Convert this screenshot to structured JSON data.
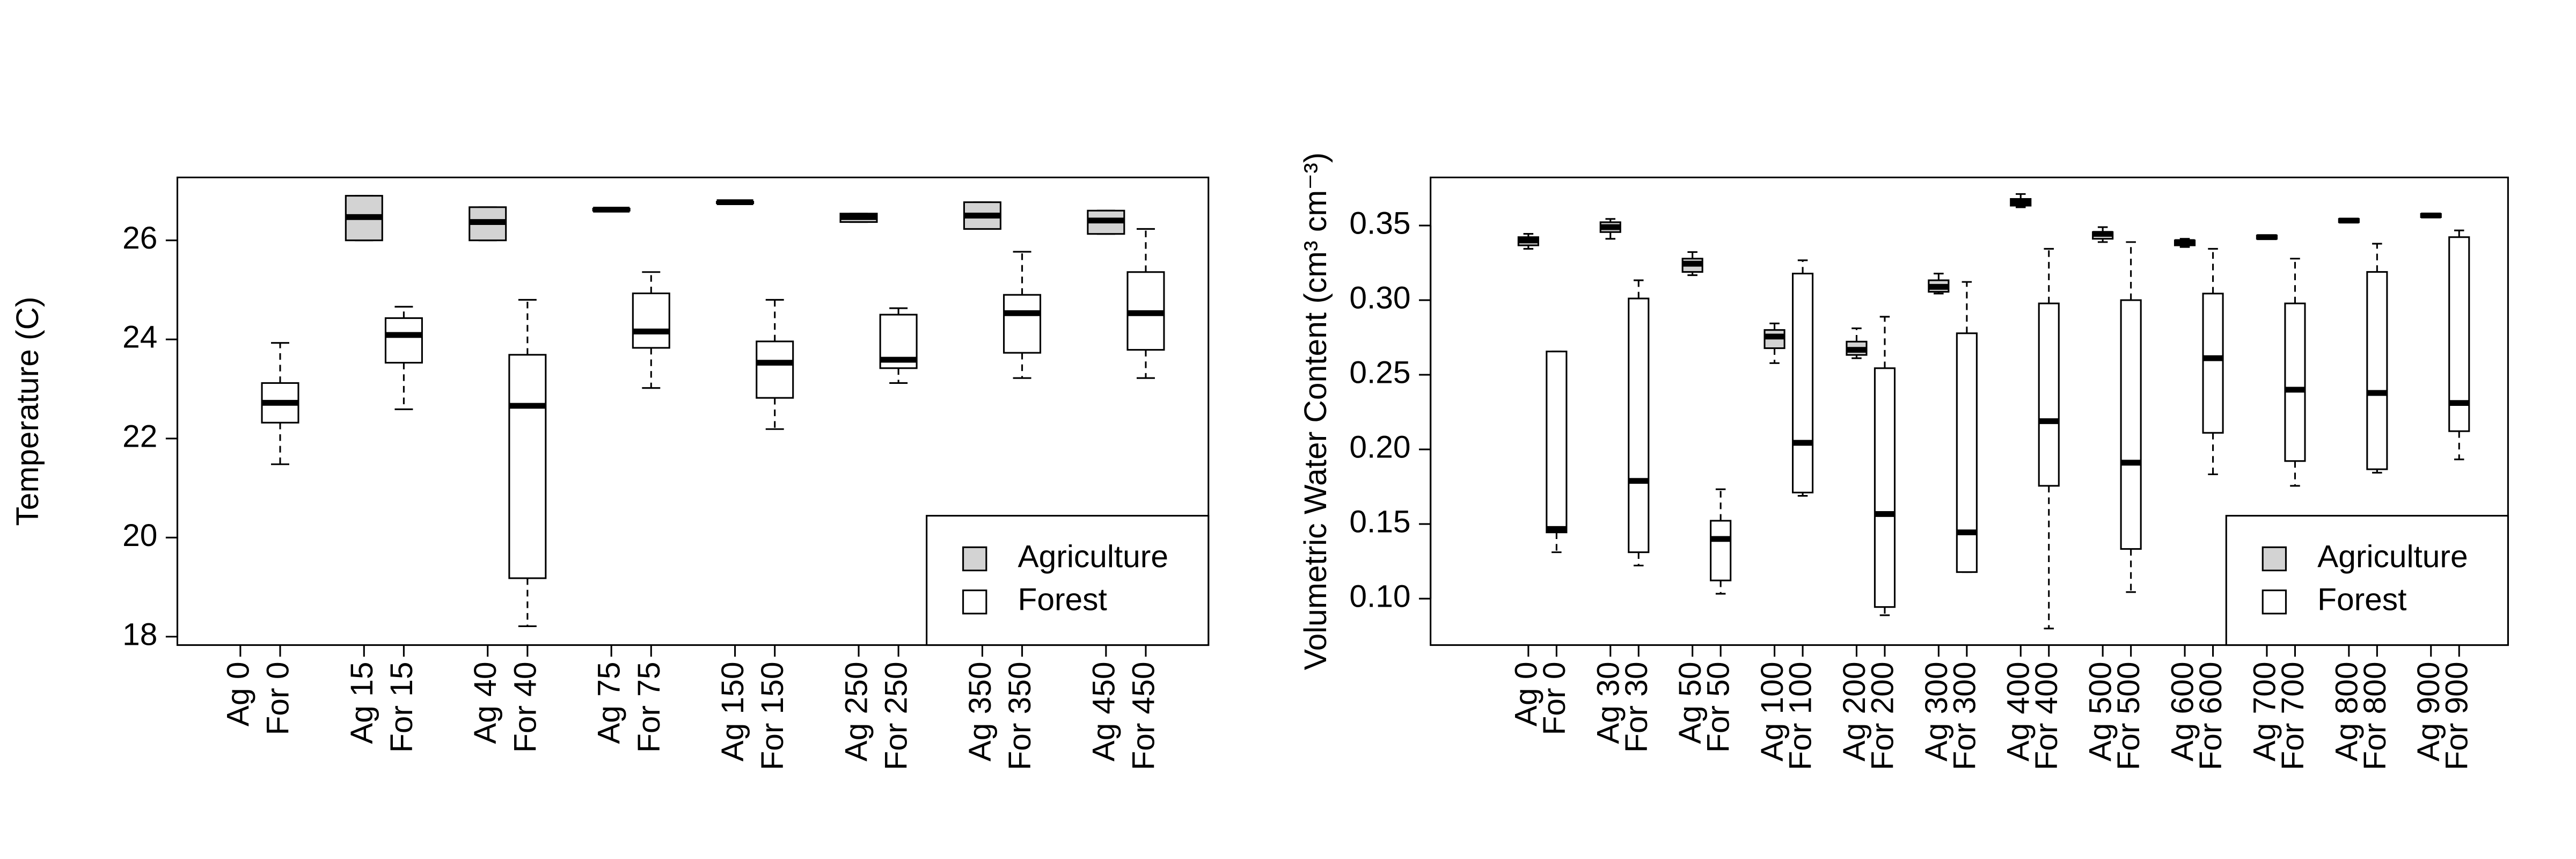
{
  "chart_data": [
    {
      "type": "boxplot",
      "ylabel": "Temperature (C)",
      "ylim": [
        17.83,
        27.27
      ],
      "yticks": [
        18,
        20,
        22,
        24,
        26
      ],
      "legend_position": "bottomright",
      "series": [
        {
          "name": "Agriculture",
          "color": "#d3d3d3",
          "labels": [
            "Ag 0",
            "Ag 15",
            "Ag 40",
            "Ag 75",
            "Ag 150",
            "Ag 250",
            "Ag 350",
            "Ag 450"
          ],
          "boxes": [
            null,
            {
              "min": 26.0,
              "q1": 26.0,
              "median": 26.47,
              "q3": 26.9,
              "max": 26.9
            },
            {
              "min": 26.0,
              "q1": 26.0,
              "median": 26.37,
              "q3": 26.67,
              "max": 26.67
            },
            {
              "min": 26.6,
              "q1": 26.6,
              "median": 26.62,
              "q3": 26.64,
              "max": 26.64
            },
            {
              "min": 26.75,
              "q1": 26.75,
              "median": 26.77,
              "q3": 26.78,
              "max": 26.78
            },
            {
              "min": 26.37,
              "q1": 26.37,
              "median": 26.47,
              "q3": 26.54,
              "max": 26.54
            },
            {
              "min": 26.23,
              "q1": 26.23,
              "median": 26.5,
              "q3": 26.77,
              "max": 26.77
            },
            {
              "min": 26.13,
              "q1": 26.13,
              "median": 26.4,
              "q3": 26.6,
              "max": 26.6
            }
          ]
        },
        {
          "name": "Forest",
          "color": "#ffffff",
          "labels": [
            "For 0",
            "For 15",
            "For 40",
            "For 75",
            "For 150",
            "For 250",
            "For 350",
            "For 450"
          ],
          "boxes": [
            {
              "min": 21.48,
              "q1": 22.32,
              "median": 22.72,
              "q3": 23.12,
              "max": 23.93
            },
            {
              "min": 22.59,
              "q1": 23.53,
              "median": 24.09,
              "q3": 24.43,
              "max": 24.66
            },
            {
              "min": 18.21,
              "q1": 19.18,
              "median": 22.66,
              "q3": 23.69,
              "max": 24.8
            },
            {
              "min": 23.02,
              "q1": 23.83,
              "median": 24.16,
              "q3": 24.93,
              "max": 25.36
            },
            {
              "min": 22.19,
              "q1": 22.82,
              "median": 23.53,
              "q3": 23.96,
              "max": 24.8
            },
            {
              "min": 23.12,
              "q1": 23.42,
              "median": 23.59,
              "q3": 24.5,
              "max": 24.63
            },
            {
              "min": 23.22,
              "q1": 23.73,
              "median": 24.53,
              "q3": 24.9,
              "max": 25.77
            },
            {
              "min": 23.22,
              "q1": 23.79,
              "median": 24.53,
              "q3": 25.36,
              "max": 26.23
            }
          ]
        }
      ]
    },
    {
      "type": "boxplot",
      "ylabel": "Volumetric Water Content (cm³ cm⁻³)",
      "ylim": [
        0.0689,
        0.3822
      ],
      "yticks": [
        {
          "value": 0.1,
          "label": "0.10"
        },
        0.15,
        {
          "value": 0.2,
          "label": "0.20"
        },
        0.25,
        {
          "value": 0.3,
          "label": "0.30"
        },
        0.35
      ],
      "legend_position": "bottomright",
      "series": [
        {
          "name": "Agriculture",
          "color": "#d3d3d3",
          "labels": [
            "Ag 0",
            "Ag 30",
            "Ag 50",
            "Ag 100",
            "Ag 200",
            "Ag 300",
            "Ag 400",
            "Ag 500",
            "Ag 600",
            "Ag 700",
            "Ag 800",
            "Ag 900"
          ],
          "boxes": [
            {
              "min": 0.3344,
              "q1": 0.3367,
              "median": 0.34,
              "q3": 0.3422,
              "max": 0.3444
            },
            {
              "min": 0.3411,
              "q1": 0.3456,
              "median": 0.3489,
              "q3": 0.3522,
              "max": 0.3544
            },
            {
              "min": 0.3167,
              "q1": 0.3189,
              "median": 0.3244,
              "q3": 0.3278,
              "max": 0.3322
            },
            {
              "min": 0.2578,
              "q1": 0.2678,
              "median": 0.2756,
              "q3": 0.28,
              "max": 0.2844
            },
            {
              "min": 0.2611,
              "q1": 0.2633,
              "median": 0.2667,
              "q3": 0.2722,
              "max": 0.2811
            },
            {
              "min": 0.3044,
              "q1": 0.3056,
              "median": 0.3089,
              "q3": 0.3133,
              "max": 0.3178
            },
            {
              "min": 0.3622,
              "q1": 0.3633,
              "median": 0.3656,
              "q3": 0.3678,
              "max": 0.3711
            },
            {
              "min": 0.3389,
              "q1": 0.3411,
              "median": 0.3444,
              "q3": 0.3456,
              "max": 0.3489
            },
            {
              "min": 0.3356,
              "q1": 0.3367,
              "median": 0.3389,
              "q3": 0.34,
              "max": 0.3411
            },
            {
              "min": 0.3411,
              "q1": 0.3411,
              "median": 0.3422,
              "q3": 0.3433,
              "max": 0.3433
            },
            {
              "min": 0.3522,
              "q1": 0.3522,
              "median": 0.3533,
              "q3": 0.3544,
              "max": 0.3544
            },
            {
              "min": 0.3556,
              "q1": 0.3556,
              "median": 0.3567,
              "q3": 0.3578,
              "max": 0.3578
            }
          ]
        },
        {
          "name": "Forest",
          "color": "#ffffff",
          "labels": [
            "For 0",
            "For 30",
            "For 50",
            "For 100",
            "For 200",
            "For 300",
            "For 400",
            "For 500",
            "For 600",
            "For 700",
            "For 800",
            "For 900"
          ],
          "boxes": [
            {
              "min": 0.1311,
              "q1": 0.1444,
              "median": 0.1467,
              "q3": 0.2656,
              "max": 0.2656
            },
            {
              "min": 0.1222,
              "q1": 0.1311,
              "median": 0.1789,
              "q3": 0.3011,
              "max": 0.3133
            },
            {
              "min": 0.1033,
              "q1": 0.1122,
              "median": 0.14,
              "q3": 0.1522,
              "max": 0.1733
            },
            {
              "min": 0.1689,
              "q1": 0.1711,
              "median": 0.2044,
              "q3": 0.3178,
              "max": 0.3267
            },
            {
              "min": 0.0889,
              "q1": 0.0944,
              "median": 0.1567,
              "q3": 0.2544,
              "max": 0.2889
            },
            {
              "min": 0.1178,
              "q1": 0.1178,
              "median": 0.1444,
              "q3": 0.2778,
              "max": 0.3122
            },
            {
              "min": 0.08,
              "q1": 0.1756,
              "median": 0.2189,
              "q3": 0.2978,
              "max": 0.3344
            },
            {
              "min": 0.1044,
              "q1": 0.1333,
              "median": 0.1911,
              "q3": 0.3,
              "max": 0.3389
            },
            {
              "min": 0.1833,
              "q1": 0.2111,
              "median": 0.2611,
              "q3": 0.3044,
              "max": 0.3344
            },
            {
              "min": 0.1756,
              "q1": 0.1922,
              "median": 0.24,
              "q3": 0.2978,
              "max": 0.3278
            },
            {
              "min": 0.1844,
              "q1": 0.1867,
              "median": 0.2378,
              "q3": 0.3189,
              "max": 0.3378
            },
            {
              "min": 0.1933,
              "q1": 0.2122,
              "median": 0.2311,
              "q3": 0.3422,
              "max": 0.3467
            }
          ]
        }
      ]
    }
  ]
}
